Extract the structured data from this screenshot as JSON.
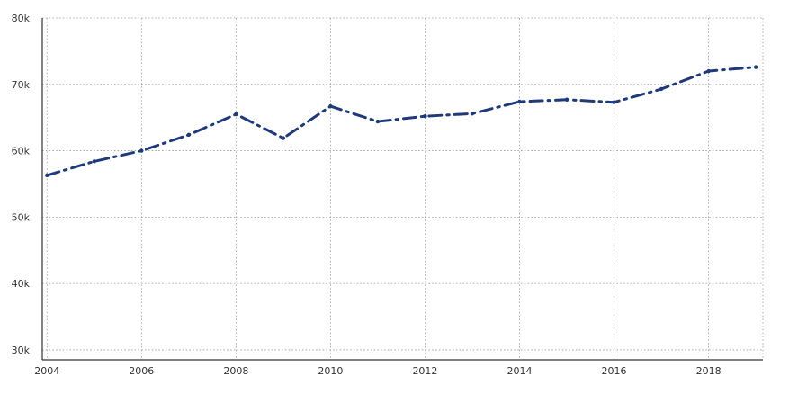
{
  "chart_data": {
    "type": "line",
    "title": "",
    "xlabel": "",
    "ylabel": "",
    "x": [
      2004,
      2005,
      2006,
      2007,
      2008,
      2009,
      2010,
      2011,
      2012,
      2013,
      2014,
      2015,
      2016,
      2017,
      2018,
      2019
    ],
    "series": [
      {
        "values": [
          56300,
          58400,
          60000,
          62400,
          65500,
          61900,
          66700,
          64400,
          65200,
          65600,
          67400,
          67700,
          67300,
          69300,
          72000,
          72600
        ],
        "color": "#1f3a7a",
        "line_style": "dash-dot"
      }
    ],
    "xlim": [
      2003.9,
      2019.15
    ],
    "ylim": [
      28500,
      80000
    ],
    "x_ticks": [
      2004,
      2006,
      2008,
      2010,
      2012,
      2014,
      2016,
      2018
    ],
    "x_tick_labels": [
      "2004",
      "2006",
      "2008",
      "2010",
      "2012",
      "2014",
      "2016",
      "2018"
    ],
    "y_ticks": [
      30000,
      40000,
      50000,
      60000,
      70000,
      80000
    ],
    "y_tick_labels": [
      "30k",
      "40k",
      "50k",
      "60k",
      "70k",
      "80k"
    ],
    "grid": true,
    "legend": "none"
  }
}
